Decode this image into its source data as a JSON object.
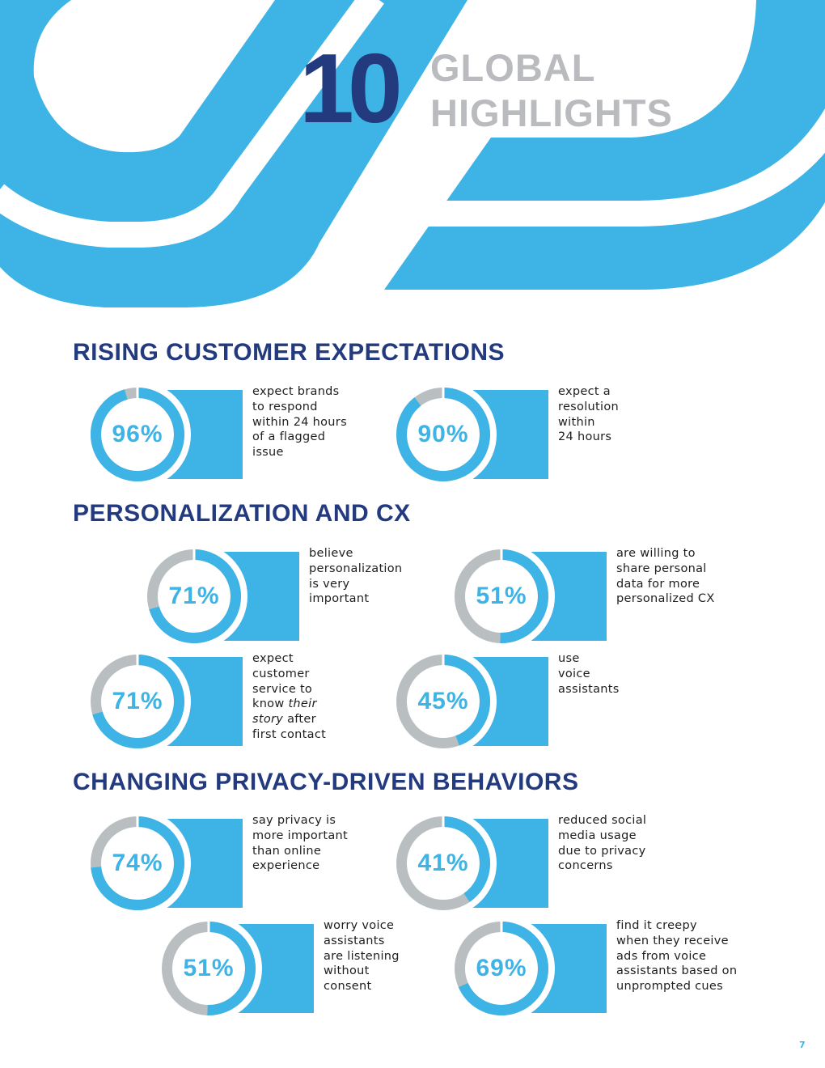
{
  "header": {
    "number": "10",
    "title_line1": "GLOBAL",
    "title_line2": "HIGHLIGHTS"
  },
  "colors": {
    "blue": "#3db3e6",
    "gray": "#b9bec1",
    "navy": "#233a7e"
  },
  "sections": [
    {
      "heading": "RISING CUSTOMER EXPECTATIONS"
    },
    {
      "heading": "PERSONALIZATION AND CX"
    },
    {
      "heading": "CHANGING PRIVACY-DRIVEN BEHAVIORS"
    }
  ],
  "stats": [
    {
      "value": 96,
      "label": "96%",
      "lines": [
        "expect brands",
        "to respond",
        "within 24 hours",
        "of a flagged",
        "issue"
      ]
    },
    {
      "value": 90,
      "label": "90%",
      "lines": [
        "expect a",
        "resolution",
        "within",
        "24 hours"
      ]
    },
    {
      "value": 71,
      "label": "71%",
      "lines": [
        "believe",
        "personalization",
        "is very",
        "important"
      ]
    },
    {
      "value": 51,
      "label": "51%",
      "lines": [
        "are willing to",
        "share personal",
        "data for more",
        "personalized CX"
      ]
    },
    {
      "value": 71,
      "label": "71%",
      "lines": [
        "expect",
        "customer",
        "service to",
        [
          {
            "t": "know "
          },
          {
            "t": "their",
            "i": true
          }
        ],
        [
          {
            "t": "story",
            "i": true
          },
          {
            "t": " after"
          }
        ],
        "first contact"
      ]
    },
    {
      "value": 45,
      "label": "45%",
      "lines": [
        "use",
        "voice",
        "assistants"
      ]
    },
    {
      "value": 74,
      "label": "74%",
      "lines": [
        "say privacy is",
        "more important",
        "than online",
        "experience"
      ]
    },
    {
      "value": 41,
      "label": "41%",
      "lines": [
        "reduced social",
        "media usage",
        "due to privacy",
        "concerns"
      ]
    },
    {
      "value": 51,
      "label": "51%",
      "lines": [
        "worry voice",
        "assistants",
        "are listening",
        "without",
        "consent"
      ]
    },
    {
      "value": 69,
      "label": "69%",
      "lines": [
        "find it creepy",
        "when they receive",
        "ads from voice",
        "assistants based on",
        "unprompted cues"
      ]
    }
  ],
  "page_number": "7"
}
